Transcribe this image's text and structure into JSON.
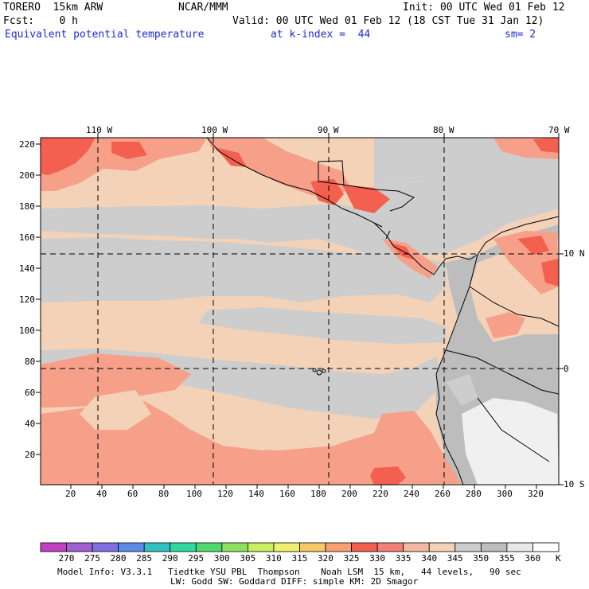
{
  "header": {
    "model": "TORERO  15km ARW",
    "source": "NCAR/MMM",
    "init": "Init: 00 UTC Wed 01 Feb 12",
    "fcst": "Fcst:    0 h",
    "valid": "Valid: 00 UTC Wed 01 Feb 12 (18 CST Tue 31 Jan 12)",
    "field": "Equivalent potential temperature",
    "level": "at k-index =  44",
    "smooth": "sm= 2"
  },
  "axes": {
    "lon_labels": [
      "110 W",
      "100 W",
      "90 W",
      "80 W",
      "70 W"
    ],
    "lat_labels": [
      "10 N",
      "0",
      "10 S"
    ],
    "y_ticks": [
      "220",
      "200",
      "180",
      "160",
      "140",
      "120",
      "100",
      "80",
      "60",
      "40",
      "20"
    ],
    "x_ticks": [
      "20",
      "40",
      "60",
      "80",
      "100",
      "120",
      "140",
      "160",
      "180",
      "200",
      "220",
      "240",
      "260",
      "280",
      "300",
      "320"
    ]
  },
  "colorbar": {
    "unit": "K",
    "labels": [
      "270",
      "275",
      "280",
      "285",
      "290",
      "295",
      "300",
      "305",
      "310",
      "315",
      "320",
      "325",
      "330",
      "335",
      "340",
      "345",
      "350",
      "355",
      "360"
    ],
    "colors": [
      "#c040c0",
      "#a060d0",
      "#8070e0",
      "#5a8ce8",
      "#30c0c0",
      "#30d8a0",
      "#50d870",
      "#90e060",
      "#c8f060",
      "#f0f070",
      "#f8c868",
      "#f8a070",
      "#f46050",
      "#f08078",
      "#f3b8a0",
      "#f3d2b8",
      "#cdcdcd",
      "#bdbdbd",
      "#e8e8e8",
      "#ffffff"
    ]
  },
  "footer": {
    "line1": "Model Info: V3.3.1   Tiedtke YSU PBL  Thompson    Noah LSM  15 km,   44 levels,   90 sec",
    "line2": "LW: Godd SW: Goddard DIFF: simple KM: 2D Smagor"
  },
  "map_colors": {
    "c335": "#f46050",
    "c340": "#f6a08a",
    "c345": "#f3d2b8",
    "c350": "#cbcbcb",
    "c355": "#bcbcbc",
    "c360": "#f0f0f0"
  }
}
